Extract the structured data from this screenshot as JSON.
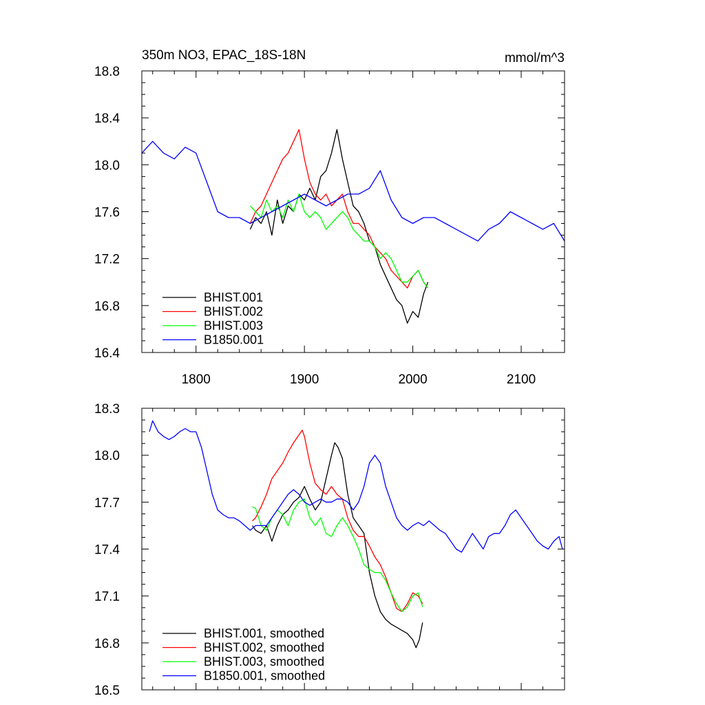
{
  "chart_data": [
    {
      "type": "line",
      "title": "350m NO3, EPAC_18S-18N",
      "units": "mmol/m^3",
      "xlim": [
        1750,
        2140
      ],
      "ylim": [
        16.4,
        18.8
      ],
      "x_ticks": [
        1800,
        1900,
        2000,
        2100
      ],
      "x_tick_labels": [
        "1800",
        "1900",
        "2000",
        "2100"
      ],
      "y_ticks": [
        16.4,
        16.8,
        17.2,
        17.6,
        18.0,
        18.4,
        18.8
      ],
      "y_tick_labels": [
        "16.4",
        "16.8",
        "17.2",
        "17.6",
        "18.0",
        "18.4",
        "18.8"
      ],
      "legend_position": "bottom-left",
      "series": [
        {
          "name": "BHIST.001",
          "color": "#000000",
          "x": [
            1850,
            1855,
            1860,
            1865,
            1870,
            1875,
            1880,
            1885,
            1890,
            1895,
            1900,
            1905,
            1910,
            1915,
            1920,
            1925,
            1930,
            1935,
            1940,
            1945,
            1950,
            1955,
            1960,
            1965,
            1970,
            1975,
            1980,
            1985,
            1990,
            1995,
            2000,
            2005,
            2010,
            2014
          ],
          "values": [
            17.45,
            17.55,
            17.5,
            17.6,
            17.4,
            17.7,
            17.5,
            17.65,
            17.6,
            17.75,
            17.7,
            17.8,
            17.7,
            17.9,
            17.95,
            18.1,
            18.3,
            18.05,
            17.85,
            17.65,
            17.6,
            17.5,
            17.35,
            17.3,
            17.15,
            17.05,
            16.95,
            16.85,
            16.8,
            16.65,
            16.75,
            16.7,
            16.9,
            17.0
          ]
        },
        {
          "name": "BHIST.002",
          "color": "#ff0000",
          "x": [
            1850,
            1855,
            1860,
            1865,
            1870,
            1875,
            1880,
            1885,
            1890,
            1895,
            1900,
            1905,
            1910,
            1915,
            1920,
            1925,
            1930,
            1935,
            1940,
            1945,
            1950,
            1955,
            1960,
            1965,
            1970,
            1975,
            1980,
            1985,
            1990,
            1995,
            2000,
            2005,
            2010,
            2014
          ],
          "values": [
            17.5,
            17.6,
            17.65,
            17.75,
            17.85,
            17.95,
            18.05,
            18.1,
            18.2,
            18.3,
            18.05,
            17.85,
            17.75,
            17.7,
            17.75,
            17.65,
            17.7,
            17.75,
            17.6,
            17.5,
            17.5,
            17.45,
            17.4,
            17.3,
            17.25,
            17.2,
            17.1,
            17.05,
            17.0,
            16.95,
            17.05,
            17.1,
            17.0,
            16.95
          ]
        },
        {
          "name": "BHIST.003",
          "color": "#00ff00",
          "x": [
            1850,
            1855,
            1860,
            1865,
            1870,
            1875,
            1880,
            1885,
            1890,
            1895,
            1900,
            1905,
            1910,
            1915,
            1920,
            1925,
            1930,
            1935,
            1940,
            1945,
            1950,
            1955,
            1960,
            1965,
            1970,
            1975,
            1980,
            1985,
            1990,
            1995,
            2000,
            2005,
            2010,
            2014
          ],
          "values": [
            17.65,
            17.6,
            17.55,
            17.7,
            17.6,
            17.65,
            17.55,
            17.7,
            17.6,
            17.75,
            17.6,
            17.55,
            17.6,
            17.55,
            17.45,
            17.5,
            17.55,
            17.6,
            17.55,
            17.45,
            17.4,
            17.35,
            17.35,
            17.3,
            17.2,
            17.25,
            17.2,
            17.1,
            17.0,
            17.0,
            17.05,
            17.1,
            17.0,
            16.95
          ]
        },
        {
          "name": "B1850.001",
          "color": "#0000ff",
          "x": [
            1750,
            1760,
            1770,
            1780,
            1790,
            1800,
            1810,
            1820,
            1830,
            1840,
            1850,
            1860,
            1870,
            1880,
            1890,
            1900,
            1910,
            1920,
            1930,
            1940,
            1950,
            1960,
            1970,
            1980,
            1990,
            2000,
            2010,
            2020,
            2030,
            2040,
            2050,
            2060,
            2070,
            2080,
            2090,
            2100,
            2110,
            2120,
            2130,
            2140
          ],
          "values": [
            18.1,
            18.2,
            18.1,
            18.05,
            18.15,
            18.1,
            17.85,
            17.6,
            17.55,
            17.55,
            17.5,
            17.55,
            17.6,
            17.65,
            17.7,
            17.75,
            17.7,
            17.65,
            17.7,
            17.75,
            17.75,
            17.8,
            17.95,
            17.7,
            17.55,
            17.5,
            17.55,
            17.55,
            17.5,
            17.45,
            17.4,
            17.35,
            17.45,
            17.5,
            17.6,
            17.55,
            17.5,
            17.45,
            17.5,
            17.35
          ]
        }
      ]
    },
    {
      "type": "line",
      "xlim": [
        1750,
        2140
      ],
      "ylim": [
        16.5,
        18.3
      ],
      "y_ticks": [
        16.5,
        16.8,
        17.1,
        17.4,
        17.7,
        18.0,
        18.3
      ],
      "y_tick_labels": [
        "16.5",
        "16.8",
        "17.1",
        "17.4",
        "17.7",
        "18.0",
        "18.3"
      ],
      "legend_position": "bottom-left",
      "series": [
        {
          "name": "BHIST.001, smoothed",
          "color": "#000000",
          "x": [
            1852,
            1855,
            1860,
            1865,
            1870,
            1875,
            1880,
            1885,
            1890,
            1895,
            1900,
            1905,
            1910,
            1915,
            1920,
            1925,
            1928,
            1931,
            1935,
            1940,
            1945,
            1950,
            1955,
            1960,
            1965,
            1970,
            1975,
            1980,
            1985,
            1990,
            1995,
            2000,
            2003,
            2006,
            2009
          ],
          "values": [
            17.55,
            17.52,
            17.5,
            17.55,
            17.45,
            17.55,
            17.62,
            17.65,
            17.7,
            17.73,
            17.8,
            17.72,
            17.65,
            17.7,
            17.85,
            18.0,
            18.08,
            18.05,
            17.98,
            17.75,
            17.6,
            17.55,
            17.5,
            17.25,
            17.1,
            17.0,
            16.95,
            16.92,
            16.9,
            16.88,
            16.86,
            16.82,
            16.77,
            16.82,
            16.93
          ]
        },
        {
          "name": "BHIST.002, smoothed",
          "color": "#ff0000",
          "x": [
            1852,
            1855,
            1860,
            1865,
            1870,
            1875,
            1880,
            1885,
            1890,
            1895,
            1898,
            1900,
            1905,
            1910,
            1915,
            1920,
            1925,
            1930,
            1935,
            1940,
            1945,
            1950,
            1955,
            1960,
            1965,
            1970,
            1975,
            1980,
            1985,
            1990,
            1995,
            2000,
            2005,
            2009
          ],
          "values": [
            17.58,
            17.6,
            17.67,
            17.75,
            17.85,
            17.9,
            17.95,
            18.02,
            18.08,
            18.13,
            18.16,
            18.12,
            17.95,
            17.82,
            17.78,
            17.75,
            17.8,
            17.75,
            17.72,
            17.6,
            17.52,
            17.48,
            17.48,
            17.42,
            17.35,
            17.3,
            17.22,
            17.12,
            17.02,
            17.0,
            17.05,
            17.12,
            17.1,
            17.05
          ]
        },
        {
          "name": "BHIST.003, smoothed",
          "color": "#00ff00",
          "x": [
            1852,
            1855,
            1860,
            1865,
            1870,
            1875,
            1880,
            1885,
            1890,
            1895,
            1900,
            1905,
            1910,
            1915,
            1920,
            1925,
            1930,
            1935,
            1940,
            1945,
            1950,
            1955,
            1960,
            1965,
            1970,
            1975,
            1980,
            1985,
            1990,
            1995,
            2000,
            2005,
            2009
          ],
          "values": [
            17.67,
            17.66,
            17.55,
            17.52,
            17.6,
            17.65,
            17.62,
            17.55,
            17.65,
            17.7,
            17.72,
            17.6,
            17.55,
            17.6,
            17.5,
            17.48,
            17.55,
            17.6,
            17.55,
            17.48,
            17.4,
            17.3,
            17.27,
            17.25,
            17.25,
            17.2,
            17.12,
            17.05,
            17.0,
            17.03,
            17.1,
            17.12,
            17.03
          ]
        },
        {
          "name": "B1850.001, smoothed",
          "color": "#0000ff",
          "x": [
            1757,
            1760,
            1765,
            1770,
            1775,
            1780,
            1785,
            1790,
            1795,
            1800,
            1805,
            1810,
            1815,
            1820,
            1825,
            1830,
            1835,
            1840,
            1845,
            1850,
            1855,
            1860,
            1865,
            1870,
            1875,
            1880,
            1885,
            1890,
            1895,
            1900,
            1905,
            1910,
            1915,
            1920,
            1925,
            1930,
            1935,
            1940,
            1945,
            1950,
            1955,
            1960,
            1965,
            1970,
            1975,
            1980,
            1985,
            1990,
            1995,
            2000,
            2005,
            2010,
            2015,
            2020,
            2025,
            2030,
            2035,
            2040,
            2045,
            2050,
            2055,
            2060,
            2065,
            2070,
            2075,
            2080,
            2085,
            2090,
            2095,
            2100,
            2105,
            2110,
            2115,
            2120,
            2125,
            2130,
            2135,
            2138
          ],
          "values": [
            18.15,
            18.22,
            18.15,
            18.12,
            18.1,
            18.12,
            18.15,
            18.17,
            18.15,
            18.15,
            18.05,
            17.9,
            17.75,
            17.65,
            17.62,
            17.6,
            17.6,
            17.58,
            17.55,
            17.52,
            17.55,
            17.55,
            17.55,
            17.6,
            17.65,
            17.7,
            17.75,
            17.78,
            17.75,
            17.7,
            17.68,
            17.7,
            17.72,
            17.7,
            17.7,
            17.72,
            17.72,
            17.7,
            17.65,
            17.7,
            17.8,
            17.95,
            18.0,
            17.95,
            17.8,
            17.7,
            17.6,
            17.55,
            17.52,
            17.55,
            17.57,
            17.55,
            17.58,
            17.55,
            17.52,
            17.5,
            17.45,
            17.4,
            17.38,
            17.44,
            17.5,
            17.45,
            17.4,
            17.48,
            17.5,
            17.5,
            17.55,
            17.62,
            17.65,
            17.6,
            17.55,
            17.5,
            17.45,
            17.42,
            17.4,
            17.45,
            17.48,
            17.4
          ]
        }
      ]
    }
  ]
}
